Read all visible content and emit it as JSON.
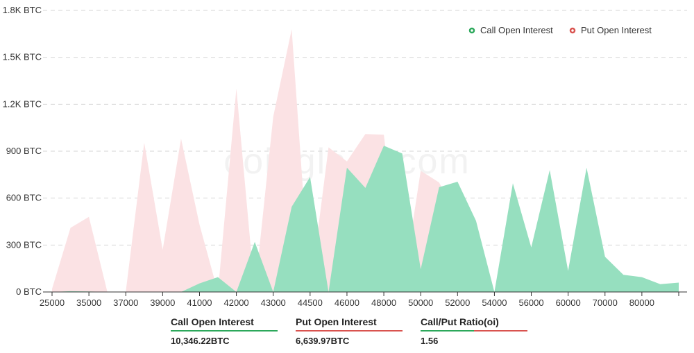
{
  "chart_data": {
    "type": "area",
    "y_unit": "BTC",
    "ylim": [
      0,
      1800
    ],
    "y_ticks": [
      0,
      300,
      600,
      900,
      1200,
      1500,
      1800
    ],
    "y_tick_labels": [
      "0 BTC",
      "300 BTC",
      "600 BTC",
      "900 BTC",
      "1.2K BTC",
      "1.5K BTC",
      "1.8K BTC"
    ],
    "x_tick_labels": [
      "25000",
      "35000",
      "37000",
      "39000",
      "41000",
      "42000",
      "43000",
      "44500",
      "46000",
      "48000",
      "50000",
      "52000",
      "54000",
      "56000",
      "60000",
      "70000",
      "80000"
    ],
    "grid": true,
    "legend_position": "top-right",
    "series": [
      {
        "name": "Call Open Interest",
        "color": "#2ca85b",
        "fill": "#96dfbf",
        "values": [
          0,
          5,
          3,
          0,
          0,
          0,
          0,
          0,
          55,
          95,
          0,
          320,
          0,
          545,
          735,
          0,
          795,
          665,
          935,
          885,
          145,
          670,
          705,
          455,
          0,
          695,
          285,
          780,
          135,
          795,
          225,
          110,
          95,
          50,
          60
        ]
      },
      {
        "name": "Put  Open Interest",
        "color": "#d9534f",
        "fill": "#fbe2e4",
        "values": [
          20,
          410,
          480,
          0,
          0,
          955,
          270,
          980,
          430,
          0,
          1300,
          0,
          1120,
          1680,
          0,
          925,
          835,
          1010,
          1005,
          0,
          775,
          700,
          485,
          0,
          0,
          0,
          0,
          0,
          0,
          0,
          0,
          0,
          0,
          0,
          0
        ]
      }
    ]
  },
  "watermark": "coinglass.com",
  "stats": [
    {
      "label": "Call Open Interest",
      "value": "10,346.22BTC",
      "bar": "call"
    },
    {
      "label": "Put Open Interest",
      "value": "6,639.97BTC",
      "bar": "put"
    },
    {
      "label": "Call/Put Ratio(oi)",
      "value": "1.56",
      "bar": "ratio"
    }
  ]
}
